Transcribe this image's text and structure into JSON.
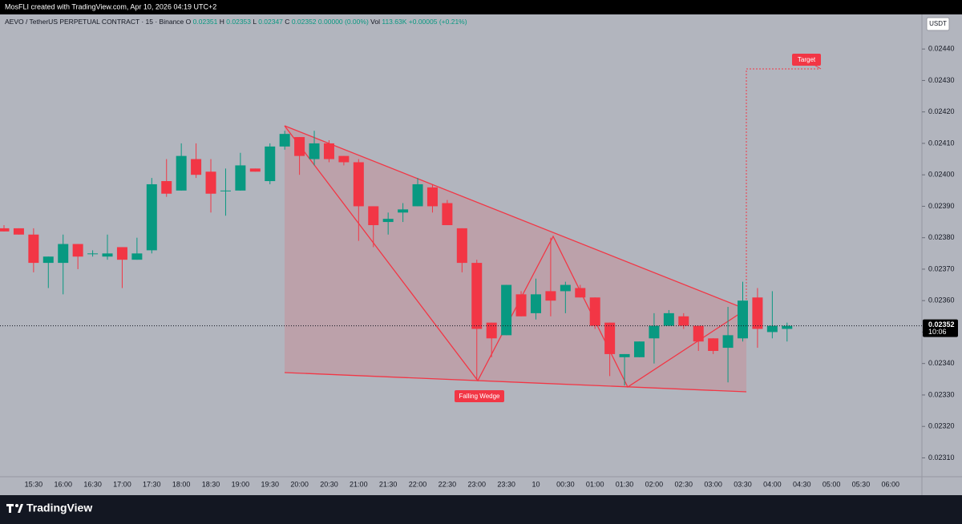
{
  "attribution": "MosFLI created with TradingView.com, Apr 10, 2026 04:19 UTC+2",
  "brand": "TradingView",
  "chart_data": {
    "type": "candlestick",
    "title": "AEVO / TetherUS PERPETUAL CONTRACT · 15 · Binance",
    "legend": [
      {
        "label": "O",
        "value": "0.02351"
      },
      {
        "label": "H",
        "value": "0.02353"
      },
      {
        "label": "L",
        "value": "0.02347"
      },
      {
        "label": "C",
        "value": "0.02352"
      }
    ],
    "change": "0.00000 (0.00%)",
    "volume": {
      "label": "Vol",
      "value": "113.63K"
    },
    "volume_change": "+0.00005 (+0.21%)",
    "currency": "USDT",
    "annotations": [
      "Target",
      "Falling Wedge"
    ],
    "up_color": "#089981",
    "down_color": "#f23645",
    "last_price": 0.02352,
    "countdown": "10:06",
    "categories": [
      null,
      null,
      "15:30",
      null,
      "16:00",
      null,
      "16:30",
      null,
      "17:00",
      null,
      "17:30",
      null,
      "18:00",
      null,
      "18:30",
      null,
      "19:00",
      null,
      "19:30",
      null,
      "20:00",
      null,
      "20:30",
      null,
      "21:00",
      null,
      "21:30",
      null,
      "22:00",
      null,
      "22:30",
      null,
      "23:00",
      null,
      "23:30",
      null,
      "10",
      null,
      "00:30",
      null,
      "01:00",
      null,
      "01:30",
      null,
      "02:00",
      null,
      "02:30",
      null,
      "03:00",
      null,
      "03:30",
      null,
      "04:00",
      null,
      "04:30",
      null,
      "05:00",
      null,
      "05:30",
      null,
      "06:00"
    ],
    "open": [
      0.02383,
      0.02383,
      0.02381,
      0.02372,
      0.02372,
      0.02378,
      0.02375,
      0.02374,
      0.02377,
      0.02373,
      0.02376,
      0.02398,
      0.02395,
      0.02405,
      0.02401,
      0.02395,
      0.02395,
      0.02402,
      0.02398,
      0.02409,
      0.02412,
      0.02405,
      0.0241,
      0.02406,
      0.02404,
      0.0239,
      0.02385,
      0.02388,
      0.0239,
      0.02396,
      0.02391,
      0.02383,
      0.02372,
      0.02353,
      0.02349,
      0.02362,
      0.02356,
      0.02363,
      0.02363,
      0.02364,
      0.02361,
      0.02353,
      0.02342,
      0.02342,
      0.02348,
      0.02352,
      0.02355,
      0.02352,
      0.02348,
      0.02345,
      0.02348,
      0.02361,
      0.0235,
      0.02351,
      null,
      null,
      null,
      null,
      null,
      null,
      null
    ],
    "high": [
      0.02384,
      0.02383,
      0.02383,
      0.02374,
      0.02381,
      0.02378,
      0.02376,
      0.02381,
      0.02377,
      0.0238,
      0.02399,
      0.02405,
      0.0241,
      0.0241,
      0.02405,
      0.02402,
      0.02407,
      0.02402,
      0.0241,
      0.02414,
      0.02412,
      0.02414,
      0.02411,
      0.02406,
      0.02405,
      0.0239,
      0.02388,
      0.02391,
      0.02399,
      0.02397,
      0.02392,
      0.02383,
      0.02373,
      0.02353,
      0.02365,
      0.02363,
      0.02367,
      0.0238,
      0.02366,
      0.02365,
      0.02361,
      0.02353,
      0.02343,
      0.02347,
      0.02356,
      0.02357,
      0.02356,
      0.02352,
      0.02348,
      0.02358,
      0.02366,
      0.02364,
      0.02363,
      0.02353,
      null,
      null,
      null,
      null,
      null,
      null,
      null
    ],
    "low": [
      0.02382,
      0.02381,
      0.02369,
      0.02364,
      0.02362,
      0.0237,
      0.02374,
      0.02373,
      0.02364,
      0.02373,
      0.02375,
      0.02393,
      0.02395,
      0.02399,
      0.02388,
      0.02387,
      0.02395,
      0.02401,
      0.02397,
      0.02408,
      0.024,
      0.02403,
      0.02404,
      0.02403,
      0.02379,
      0.02377,
      0.02381,
      0.02385,
      0.0239,
      0.02388,
      0.02384,
      0.02369,
      0.02335,
      0.02342,
      0.02349,
      0.02355,
      0.02354,
      0.02355,
      0.02356,
      0.02361,
      0.02351,
      0.02336,
      0.02333,
      0.02342,
      0.0234,
      0.02352,
      0.02351,
      0.02344,
      0.02343,
      0.02334,
      0.02347,
      0.02345,
      0.02348,
      0.02347,
      null,
      null,
      null,
      null,
      null,
      null,
      null
    ],
    "close": [
      0.02382,
      0.02381,
      0.02372,
      0.02374,
      0.02378,
      0.02374,
      0.02375,
      0.02375,
      0.02373,
      0.02375,
      0.02397,
      0.02394,
      0.02406,
      0.024,
      0.02394,
      0.02395,
      0.02403,
      0.02401,
      0.02409,
      0.02413,
      0.02406,
      0.0241,
      0.02405,
      0.02404,
      0.0239,
      0.02384,
      0.02386,
      0.02389,
      0.02397,
      0.0239,
      0.02384,
      0.02372,
      0.02351,
      0.02348,
      0.02365,
      0.02355,
      0.02362,
      0.0236,
      0.02365,
      0.02361,
      0.02352,
      0.02343,
      0.02343,
      0.02347,
      0.02352,
      0.02356,
      0.02352,
      0.02347,
      0.02344,
      0.02349,
      0.0236,
      0.02351,
      0.02352,
      0.02352,
      null,
      null,
      null,
      null,
      null,
      null,
      null
    ],
    "ylim": [
      0.02304,
      0.02451
    ],
    "yticks": [
      {
        "value": 0.0231,
        "label": "0.02310"
      },
      {
        "value": 0.0232,
        "label": "0.02320"
      },
      {
        "value": 0.0233,
        "label": "0.02330"
      },
      {
        "value": 0.0234,
        "label": "0.02340"
      },
      {
        "value": 0.0235,
        "label": "0.02350"
      },
      {
        "value": 0.0236,
        "label": "0.02360"
      },
      {
        "value": 0.0237,
        "label": "0.02370"
      },
      {
        "value": 0.0238,
        "label": "0.02380"
      },
      {
        "value": 0.0239,
        "label": "0.02390"
      },
      {
        "value": 0.024,
        "label": "0.02400"
      },
      {
        "value": 0.0241,
        "label": "0.02410"
      },
      {
        "value": 0.0242,
        "label": "0.02420"
      },
      {
        "value": 0.0243,
        "label": "0.02430"
      },
      {
        "value": 0.0244,
        "label": "0.02440"
      }
    ],
    "grid": false
  }
}
